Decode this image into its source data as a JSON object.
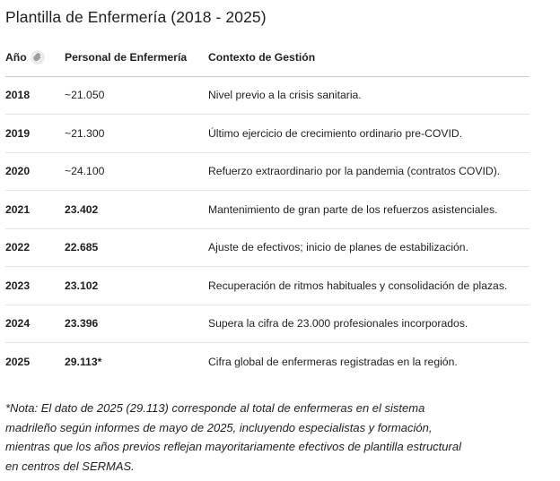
{
  "title": "Plantilla de Enfermería (2018 - 2025)",
  "table": {
    "headers": {
      "year": "Año",
      "staff": "Personal de Enfermería",
      "context": "Contexto de Gestión"
    },
    "year_header_icon": "link-icon",
    "rows": [
      {
        "year": "2018",
        "staff": "~21.050",
        "context": "Nivel previo a la crisis sanitaria."
      },
      {
        "year": "2019",
        "staff": "~21.300",
        "context": "Último ejercicio de crecimiento ordinario pre-COVID."
      },
      {
        "year": "2020",
        "staff": "~24.100",
        "context": "Refuerzo extraordinario por la pandemia (contratos COVID)."
      },
      {
        "year": "2021",
        "staff": "23.402",
        "context": "Mantenimiento de gran parte de los refuerzos asistenciales."
      },
      {
        "year": "2022",
        "staff": "22.685",
        "context": "Ajuste de efectivos; inicio de planes de estabilización."
      },
      {
        "year": "2023",
        "staff": "23.102",
        "context": "Recuperación de ritmos habituales y consolidación de plazas."
      },
      {
        "year": "2024",
        "staff": "23.396",
        "context": "Supera la cifra de 23.000 profesionales incorporados."
      },
      {
        "year": "2025",
        "staff": "29.113*",
        "context": "Cifra global de enfermeras registradas en la región."
      }
    ]
  },
  "note": {
    "lines": [
      "*Nota: El dato de 2025 (29.113) corresponde al total de enfermeras en el sistema",
      "madrileño según informes de mayo de 2025, incluyendo especialistas y formación,",
      "mientras que los años previos reflejan mayoritariamente efectivos de plantilla estructural",
      "en centros del SERMAS."
    ]
  }
}
